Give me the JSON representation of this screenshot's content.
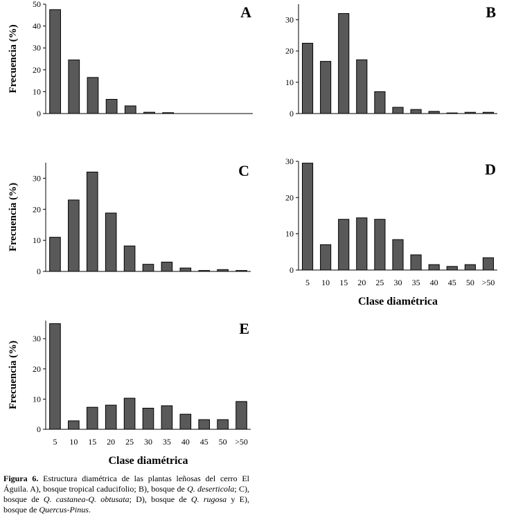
{
  "chart_data": [
    {
      "type": "bar",
      "panel": "A",
      "ylabel": "Frecuencia (%)",
      "xlabel": "",
      "ylim": [
        0,
        50
      ],
      "yticks": [
        0,
        10,
        20,
        30,
        40,
        50
      ],
      "categories": [
        "5",
        "10",
        "15",
        "20",
        "25",
        "30",
        "35",
        "40",
        "45",
        "50",
        ">50"
      ],
      "show_category_labels": false,
      "values": [
        47.5,
        24.5,
        16.5,
        6.5,
        3.5,
        0.6,
        0.4,
        0,
        0,
        0,
        0
      ]
    },
    {
      "type": "bar",
      "panel": "B",
      "ylabel": "",
      "xlabel": "",
      "ylim": [
        0,
        35
      ],
      "yticks": [
        0,
        10,
        20,
        30
      ],
      "categories": [
        "5",
        "10",
        "15",
        "20",
        "25",
        "30",
        "35",
        "40",
        "45",
        "50",
        ">50"
      ],
      "show_category_labels": false,
      "values": [
        22.5,
        16.7,
        32.0,
        17.2,
        7.0,
        2.0,
        1.3,
        0.7,
        0.2,
        0.4,
        0.4
      ]
    },
    {
      "type": "bar",
      "panel": "C",
      "ylabel": "Frecuencia (%)",
      "xlabel": "",
      "ylim": [
        0,
        35
      ],
      "yticks": [
        0,
        10,
        20,
        30
      ],
      "categories": [
        "5",
        "10",
        "15",
        "20",
        "25",
        "30",
        "35",
        "40",
        "45",
        "50",
        ">50"
      ],
      "show_category_labels": false,
      "values": [
        11.0,
        23.0,
        32.0,
        18.8,
        8.2,
        2.3,
        3.0,
        1.1,
        0.3,
        0.6,
        0.3
      ]
    },
    {
      "type": "bar",
      "panel": "D",
      "ylabel": "",
      "xlabel": "Clase diamétrica",
      "ylim": [
        0,
        30
      ],
      "yticks": [
        0,
        10,
        20,
        30
      ],
      "categories": [
        "5",
        "10",
        "15",
        "20",
        "25",
        "30",
        "35",
        "40",
        "45",
        "50",
        ">50"
      ],
      "show_category_labels": true,
      "values": [
        29.5,
        7.0,
        14.0,
        14.4,
        14.0,
        8.4,
        4.2,
        1.5,
        1.0,
        1.5,
        3.4
      ]
    },
    {
      "type": "bar",
      "panel": "E",
      "ylabel": "Frecuencia (%)",
      "xlabel": "Clase diamétrica",
      "ylim": [
        0,
        36
      ],
      "yticks": [
        0,
        10,
        20,
        30
      ],
      "categories": [
        "5",
        "10",
        "15",
        "20",
        "25",
        "30",
        "35",
        "40",
        "45",
        "50",
        ">50"
      ],
      "show_category_labels": true,
      "values": [
        35.0,
        2.8,
        7.3,
        8.0,
        10.3,
        7.0,
        7.8,
        5.0,
        3.2,
        3.2,
        9.2
      ]
    }
  ],
  "caption": {
    "label": "Figura 6.",
    "text_1": " Estructura diamétrica de las plantas leñosas del cerro El Águila. A), bosque tropical caducifolio; B), bosque de ",
    "italic_1": "Q. deserticola",
    "text_2": "; C), bosque de ",
    "italic_2": "Q. castanea-Q. obtusata",
    "text_3": "; D), bosque de ",
    "italic_3": "Q. rugosa",
    "text_4": " y E), bosque de ",
    "italic_4": "Quercus-Pinus",
    "text_5": "."
  },
  "colors": {
    "bar_fill": "#595959",
    "axis": "#000000",
    "background": "#ffffff"
  }
}
